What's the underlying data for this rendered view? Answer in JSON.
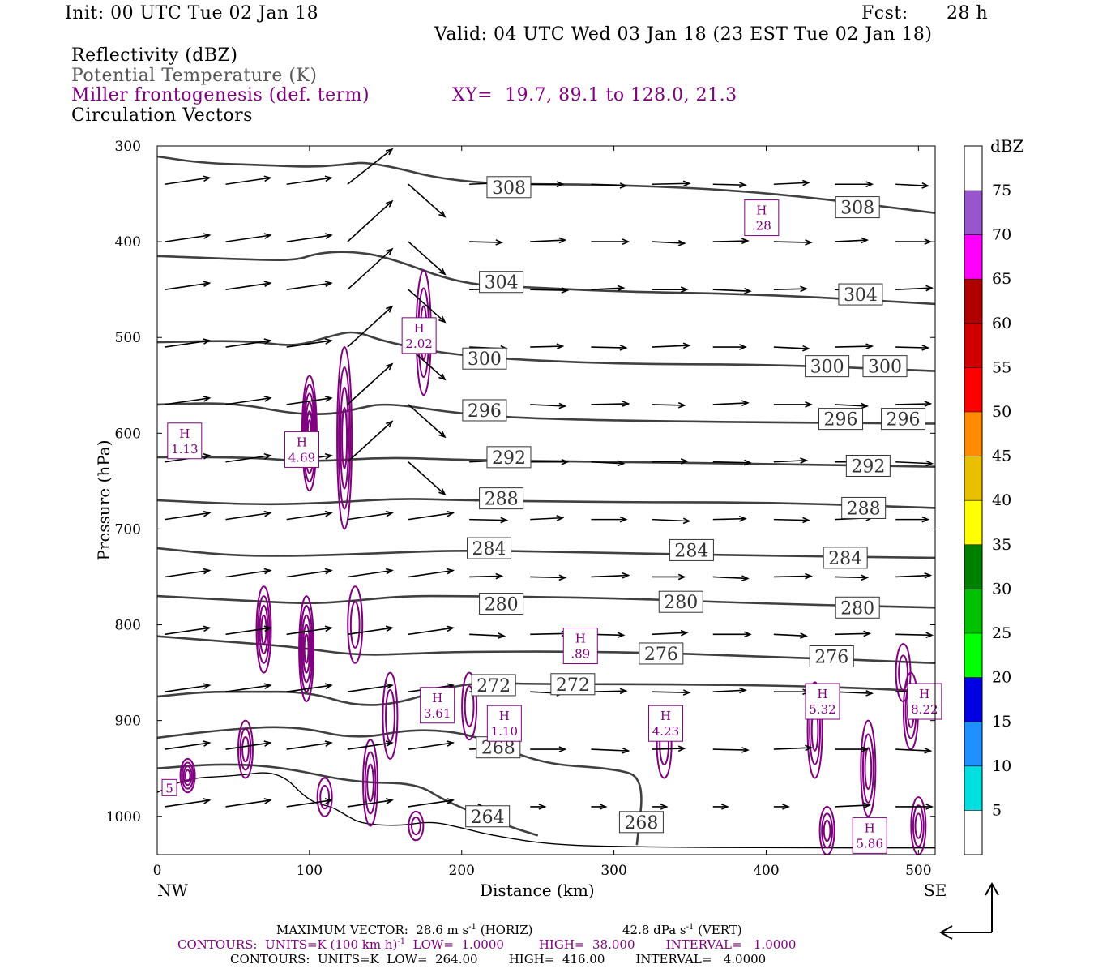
{
  "header": {
    "init": "Init: 00 UTC Tue 02 Jan 18",
    "fcst_label": "Fcst:",
    "fcst_value": "28 h",
    "valid": "Valid: 04 UTC Wed 03 Jan 18 (23 EST Tue 02 Jan 18)",
    "field1": "Reflectivity (dBZ)",
    "field2": "Potential Temperature (K)",
    "field3": "Miller frontogenesis (def. term)",
    "xy": "XY=  19.7, 89.1 to 128.0, 21.3",
    "field4": "Circulation Vectors"
  },
  "colors": {
    "theta": "#404040",
    "frontogenesis": "#800080",
    "terrain": "#000000",
    "vectors": "#000000",
    "dbz_scale": [
      "#ffffff",
      "#00e0e0",
      "#1e90ff",
      "#0000e0",
      "#00ff00",
      "#00c000",
      "#008000",
      "#ffff00",
      "#e8c000",
      "#ff8c00",
      "#ff0000",
      "#d00000",
      "#b00000",
      "#ff00ff",
      "#9955cc",
      "#ffffff"
    ]
  },
  "axes": {
    "ylabel": "Pressure (hPa)",
    "xlabel": "Distance (km)",
    "left_end": "NW",
    "right_end": "SE",
    "colorbar_label": "dBZ",
    "y_ticks": [
      "300",
      "400",
      "500",
      "600",
      "700",
      "800",
      "900",
      "1000"
    ],
    "x_ticks": [
      "0",
      "100",
      "200",
      "300",
      "400",
      "500"
    ],
    "colorbar_ticks": [
      "5",
      "10",
      "15",
      "20",
      "25",
      "30",
      "35",
      "40",
      "45",
      "50",
      "55",
      "60",
      "65",
      "70",
      "75"
    ]
  },
  "footer": {
    "max_vector": "MAXIMUM VECTOR:  28.6 m s",
    "max_vector_exp": "-1",
    "max_vector_horiz": " (HORIZ)",
    "max_vector_vert": "42.8 dPa s",
    "max_vector_vert_exp": "-1",
    "max_vector_vert_tail": " (VERT)",
    "contours1_a": "CONTOURS:  UNITS=K (100 km h)",
    "contours1_exp": "-1",
    "contours1_b": "  LOW=  1.0000         HIGH=  38.000        INTERVAL=   1.0000",
    "contours2": "CONTOURS:  UNITS=K  LOW=  264.00        HIGH=  416.00        INTERVAL=   4.0000"
  },
  "chart_data": {
    "type": "cross-section",
    "x_range": [
      0,
      511
    ],
    "y_range": [
      300,
      1040
    ],
    "y_scale": "linear, inverted (pressure)",
    "x_unit": "km",
    "y_unit": "hPa",
    "theta_contours": [
      {
        "level": 308,
        "points": [
          [
            0,
            311
          ],
          [
            30,
            318
          ],
          [
            70,
            320
          ],
          [
            100,
            322
          ],
          [
            120,
            320
          ],
          [
            140,
            316
          ],
          [
            200,
            340
          ],
          [
            300,
            340
          ],
          [
            400,
            348
          ],
          [
            511,
            370
          ]
        ],
        "labels": [
          {
            "text": "308",
            "x": 231,
            "y": 343
          },
          {
            "text": "308",
            "x": 460,
            "y": 364
          }
        ]
      },
      {
        "level": 304,
        "points": [
          [
            0,
            415
          ],
          [
            50,
            418
          ],
          [
            90,
            420
          ],
          [
            105,
            412
          ],
          [
            125,
            410
          ],
          [
            150,
            415
          ],
          [
            200,
            445
          ],
          [
            250,
            448
          ],
          [
            300,
            452
          ],
          [
            400,
            455
          ],
          [
            511,
            465
          ]
        ],
        "labels": [
          {
            "text": "304",
            "x": 226,
            "y": 442
          },
          {
            "text": "304",
            "x": 462,
            "y": 455
          }
        ]
      },
      {
        "level": 300,
        "points": [
          [
            0,
            505
          ],
          [
            60,
            503
          ],
          [
            90,
            510
          ],
          [
            115,
            498
          ],
          [
            130,
            493
          ],
          [
            150,
            505
          ],
          [
            200,
            520
          ],
          [
            300,
            528
          ],
          [
            400,
            528
          ],
          [
            511,
            535
          ]
        ],
        "labels": [
          {
            "text": "300",
            "x": 215,
            "y": 522
          },
          {
            "text": "300",
            "x": 440,
            "y": 530
          },
          {
            "text": "300",
            "x": 478,
            "y": 530
          }
        ]
      },
      {
        "level": 296,
        "points": [
          [
            0,
            570
          ],
          [
            50,
            568
          ],
          [
            90,
            580
          ],
          [
            115,
            580
          ],
          [
            130,
            575
          ],
          [
            150,
            568
          ],
          [
            200,
            580
          ],
          [
            250,
            585
          ],
          [
            350,
            588
          ],
          [
            511,
            590
          ]
        ],
        "labels": [
          {
            "text": "296",
            "x": 215,
            "y": 576
          },
          {
            "text": "296",
            "x": 449,
            "y": 585
          },
          {
            "text": "296",
            "x": 490,
            "y": 585
          }
        ]
      },
      {
        "level": 292,
        "points": [
          [
            0,
            625
          ],
          [
            60,
            625
          ],
          [
            100,
            630
          ],
          [
            150,
            625
          ],
          [
            200,
            628
          ],
          [
            300,
            630
          ],
          [
            400,
            632
          ],
          [
            511,
            635
          ]
        ],
        "labels": [
          {
            "text": "292",
            "x": 231,
            "y": 625
          },
          {
            "text": "292",
            "x": 467,
            "y": 634
          }
        ]
      },
      {
        "level": 288,
        "points": [
          [
            0,
            670
          ],
          [
            70,
            675
          ],
          [
            120,
            672
          ],
          [
            160,
            668
          ],
          [
            200,
            670
          ],
          [
            300,
            672
          ],
          [
            400,
            672
          ],
          [
            511,
            678
          ]
        ],
        "labels": [
          {
            "text": "288",
            "x": 226,
            "y": 668
          },
          {
            "text": "288",
            "x": 464,
            "y": 678
          }
        ]
      },
      {
        "level": 284,
        "points": [
          [
            0,
            720
          ],
          [
            50,
            728
          ],
          [
            100,
            728
          ],
          [
            150,
            725
          ],
          [
            200,
            722
          ],
          [
            300,
            725
          ],
          [
            400,
            728
          ],
          [
            511,
            730
          ]
        ],
        "labels": [
          {
            "text": "284",
            "x": 218,
            "y": 720
          },
          {
            "text": "284",
            "x": 351,
            "y": 722
          },
          {
            "text": "284",
            "x": 452,
            "y": 730
          }
        ]
      },
      {
        "level": 280,
        "points": [
          [
            0,
            770
          ],
          [
            60,
            775
          ],
          [
            100,
            778
          ],
          [
            130,
            775
          ],
          [
            160,
            770
          ],
          [
            200,
            770
          ],
          [
            300,
            772
          ],
          [
            400,
            778
          ],
          [
            511,
            782
          ]
        ],
        "labels": [
          {
            "text": "280",
            "x": 226,
            "y": 778
          },
          {
            "text": "280",
            "x": 344,
            "y": 776
          },
          {
            "text": "280",
            "x": 460,
            "y": 782
          }
        ]
      },
      {
        "level": 276,
        "points": [
          [
            0,
            812
          ],
          [
            50,
            818
          ],
          [
            90,
            823
          ],
          [
            130,
            832
          ],
          [
            170,
            830
          ],
          [
            200,
            828
          ],
          [
            300,
            828
          ],
          [
            400,
            833
          ],
          [
            511,
            840
          ]
        ],
        "labels": [
          {
            "text": "276",
            "x": 331,
            "y": 830
          },
          {
            "text": "276",
            "x": 443,
            "y": 833
          }
        ]
      },
      {
        "level": 272,
        "points": [
          [
            0,
            875
          ],
          [
            30,
            870
          ],
          [
            60,
            870
          ],
          [
            100,
            870
          ],
          [
            130,
            885
          ],
          [
            160,
            882
          ],
          [
            200,
            860
          ],
          [
            250,
            862
          ],
          [
            350,
            862
          ],
          [
            450,
            865
          ],
          [
            511,
            870
          ]
        ],
        "labels": [
          {
            "text": "272",
            "x": 221,
            "y": 863
          },
          {
            "text": "272",
            "x": 273,
            "y": 862
          }
        ]
      },
      {
        "level": 268,
        "points": [
          [
            0,
            918
          ],
          [
            40,
            910
          ],
          [
            90,
            905
          ],
          [
            130,
            920
          ],
          [
            170,
            908
          ],
          [
            210,
            915
          ],
          [
            250,
            945
          ],
          [
            300,
            950
          ],
          [
            320,
            960
          ],
          [
            315,
            1030
          ]
        ],
        "labels": [
          {
            "text": "268",
            "x": 224,
            "y": 928
          },
          {
            "text": "268",
            "x": 318,
            "y": 1006
          }
        ]
      },
      {
        "level": 264,
        "points": [
          [
            0,
            950
          ],
          [
            40,
            945
          ],
          [
            80,
            948
          ],
          [
            130,
            965
          ],
          [
            170,
            965
          ],
          [
            190,
            985
          ],
          [
            230,
            1010
          ],
          [
            250,
            1020
          ]
        ],
        "labels": [
          {
            "text": "264",
            "x": 217,
            "y": 1000
          }
        ]
      }
    ],
    "frontogenesis_maxima": [
      {
        "label": "H",
        "value": "1.13",
        "x": 18,
        "y": 608
      },
      {
        "label": "H",
        "value": "4.69",
        "x": 95,
        "y": 617
      },
      {
        "label": "H",
        "value": "2.02",
        "x": 172,
        "y": 498
      },
      {
        "label": "H",
        "value": ".28",
        "x": 397,
        "y": 375
      },
      {
        "label": "H",
        "value": ".89",
        "x": 278,
        "y": 822
      },
      {
        "label": "H",
        "value": "3.61",
        "x": 184,
        "y": 884
      },
      {
        "label": "H",
        "value": "1.10",
        "x": 228,
        "y": 903
      },
      {
        "label": "H",
        "value": "4.23",
        "x": 334,
        "y": 903
      },
      {
        "label": "H",
        "value": "5.32",
        "x": 437,
        "y": 880
      },
      {
        "label": "H",
        "value": "8.22",
        "x": 504,
        "y": 880
      },
      {
        "label": "H",
        "value": "5.86",
        "x": 468,
        "y": 1020
      },
      {
        "label": "",
        "value": "5",
        "x": 8,
        "y": 970
      }
    ]
  }
}
